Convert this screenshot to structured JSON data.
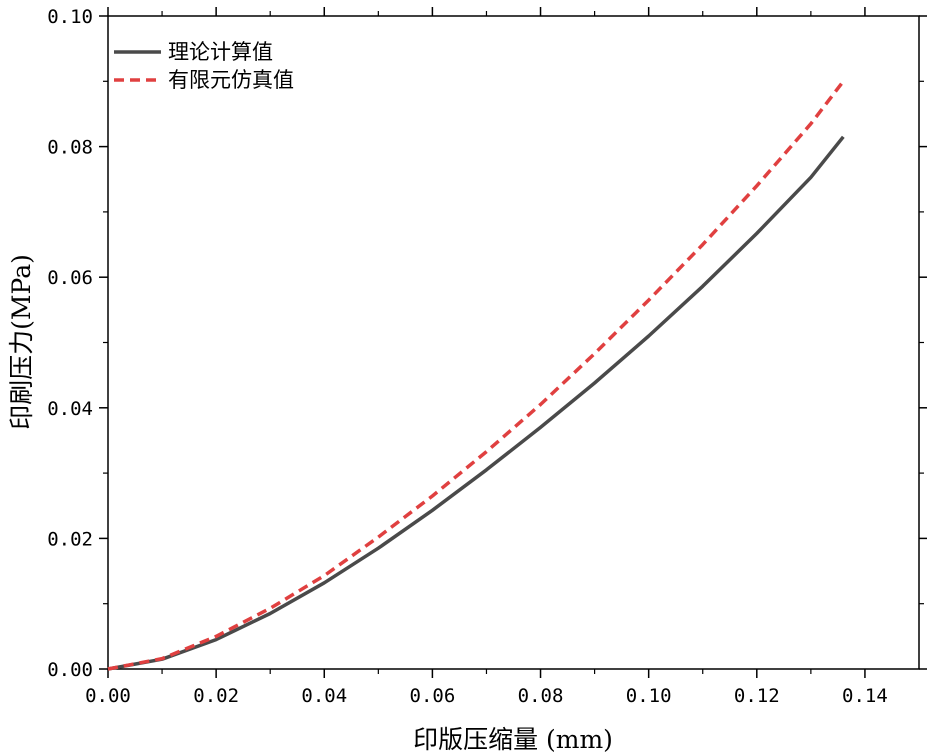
{
  "chart_data": {
    "type": "line",
    "xlabel": "印版压缩量 (mm)",
    "ylabel": "印刷压力(MPa)",
    "xlim": [
      0,
      0.15
    ],
    "ylim": [
      0,
      0.1
    ],
    "x_ticks": [
      0.0,
      0.02,
      0.04,
      0.06,
      0.08,
      0.1,
      0.12,
      0.14
    ],
    "y_ticks": [
      0.0,
      0.02,
      0.04,
      0.06,
      0.08,
      0.1
    ],
    "x_tick_labels": [
      "0.00",
      "0.02",
      "0.04",
      "0.06",
      "0.08",
      "0.10",
      "0.12",
      "0.14"
    ],
    "y_tick_labels": [
      "0.00",
      "0.02",
      "0.04",
      "0.06",
      "0.08",
      "0.10"
    ],
    "grid": false,
    "legend_position": "top-left",
    "series": [
      {
        "name": "理论计算值",
        "color": "#4a4a4a",
        "dash": "solid",
        "x": [
          0,
          0.01,
          0.02,
          0.03,
          0.04,
          0.05,
          0.06,
          0.07,
          0.08,
          0.09,
          0.1,
          0.11,
          0.12,
          0.13,
          0.136
        ],
        "y": [
          0,
          0.0015,
          0.0045,
          0.0085,
          0.0132,
          0.0185,
          0.0243,
          0.0305,
          0.037,
          0.0438,
          0.051,
          0.0586,
          0.0667,
          0.0753,
          0.0815
        ]
      },
      {
        "name": "有限元仿真值",
        "color": "#e04040",
        "dash": "dashed",
        "x": [
          0,
          0.01,
          0.02,
          0.03,
          0.04,
          0.05,
          0.06,
          0.07,
          0.08,
          0.09,
          0.1,
          0.11,
          0.12,
          0.13,
          0.136
        ],
        "y": [
          0,
          0.0016,
          0.005,
          0.0093,
          0.0143,
          0.0202,
          0.0265,
          0.0333,
          0.0405,
          0.0483,
          0.0565,
          0.065,
          0.074,
          0.0835,
          0.09
        ]
      }
    ]
  }
}
